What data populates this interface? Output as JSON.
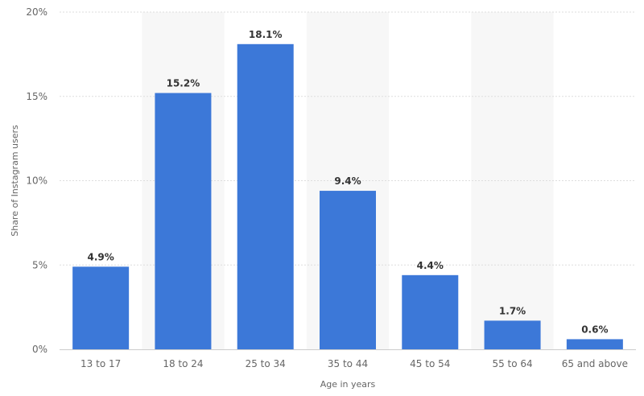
{
  "chart_data": {
    "type": "bar",
    "title": "",
    "xlabel": "Age in years",
    "ylabel": "Share of Instagram users",
    "categories": [
      "13 to 17",
      "18 to 24",
      "25 to 34",
      "35 to 44",
      "45 to 54",
      "55 to 64",
      "65 and above"
    ],
    "values": [
      4.9,
      15.2,
      18.1,
      9.4,
      4.4,
      1.7,
      0.6
    ],
    "value_labels": [
      "4.9%",
      "15.2%",
      "18.1%",
      "9.4%",
      "4.4%",
      "1.7%",
      "0.6%"
    ],
    "ylim": [
      0,
      20
    ],
    "yticks": [
      0,
      5,
      10,
      15,
      20
    ],
    "ytick_labels": [
      "0%",
      "5%",
      "10%",
      "15%",
      "20%"
    ],
    "grid": true,
    "colors": {
      "bar": "#3c78d8",
      "band": "#f7f7f7",
      "grid": "#dddddd",
      "axis": "#cccccc"
    }
  }
}
